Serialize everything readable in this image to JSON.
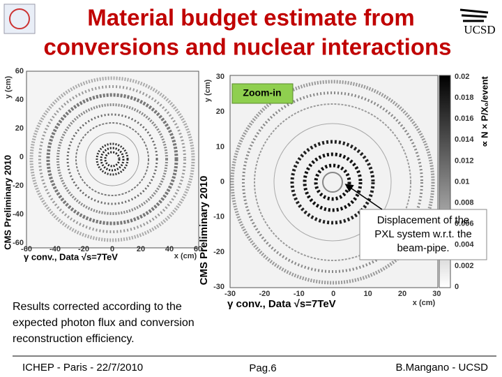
{
  "header": {
    "title_lines": [
      "Material budget estimate from",
      "conversions and nuclear interactions"
    ],
    "logo": "UCSD"
  },
  "left_plot": {
    "y_label": "y (cm)",
    "x_label": "x (cm)",
    "side_label": "CMS Preliminary 2010",
    "caption": "γ conv., Data √s=7TeV",
    "yticks": [
      "60",
      "40",
      "20",
      "0",
      "-20",
      "-40",
      "-60"
    ],
    "xticks": [
      "-60",
      "-40",
      "-20",
      "0",
      "20",
      "40",
      "60"
    ]
  },
  "right_plot": {
    "y_label": "y (cm)",
    "x_label": "x (cm)",
    "side_label": "CMS Preliminary 2010",
    "caption": "γ conv., Data √s=7TeV",
    "yticks": [
      "30",
      "20",
      "10",
      "0",
      "-10",
      "-20",
      "-30"
    ],
    "xticks": [
      "-30",
      "-20",
      "-10",
      "0",
      "10",
      "20",
      "30"
    ],
    "colorbar_ticks": [
      "0.02",
      "0.018",
      "0.016",
      "0.014",
      "0.012",
      "0.01",
      "0.008",
      "0.006",
      "0.004",
      "0.002",
      "0"
    ],
    "colorbar_label": "∝ N × P/X₀/event",
    "zoom_label": "Zoom-in",
    "annotation_lines": [
      "Displacement of the",
      "PXL system w.r.t. the",
      "beam-pipe."
    ]
  },
  "body": {
    "lines": [
      "Results corrected according to the",
      "expected photon flux and conversion",
      "reconstruction efficiency."
    ]
  },
  "footer": {
    "left": "ICHEP - Paris - 22/7/2010",
    "center": "Pag.6",
    "right": "B.Mangano - UCSD"
  }
}
